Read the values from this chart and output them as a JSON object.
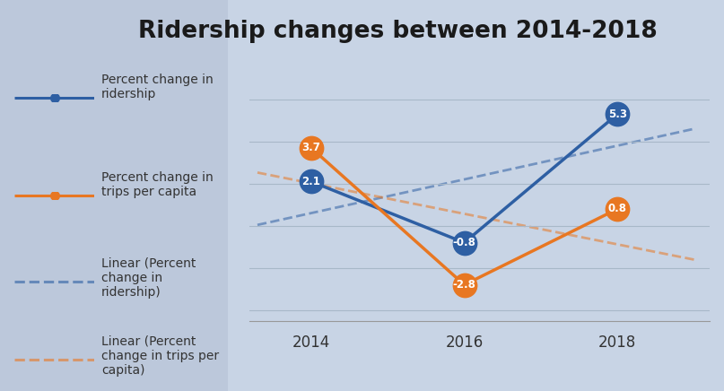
{
  "title": "Ridership changes between 2014-2018",
  "years": [
    2014,
    2016,
    2018
  ],
  "ridership": [
    2.1,
    -0.8,
    5.3
  ],
  "trips_per_capita": [
    3.7,
    -2.8,
    0.8
  ],
  "ridership_color": "#2E5FA3",
  "trips_color": "#E87722",
  "bg_left": "#BCC8DB",
  "bg_right": "#C8D4E5",
  "ridership_label": "Percent change in\nridership",
  "trips_label": "Percent change in\ntrips per capita",
  "linear_ridership_label": "Linear (Percent\nchange in\nridership)",
  "linear_trips_label": "Linear (Percent\nchange in trips per\ncapita)",
  "title_fontsize": 19,
  "tick_fontsize": 12,
  "legend_fontsize": 10,
  "ylim": [
    -4.5,
    7.0
  ],
  "yticks": [
    -4,
    -2,
    0,
    2,
    4,
    6
  ],
  "grid_color": "#A8B8C8",
  "marker_size": 20
}
